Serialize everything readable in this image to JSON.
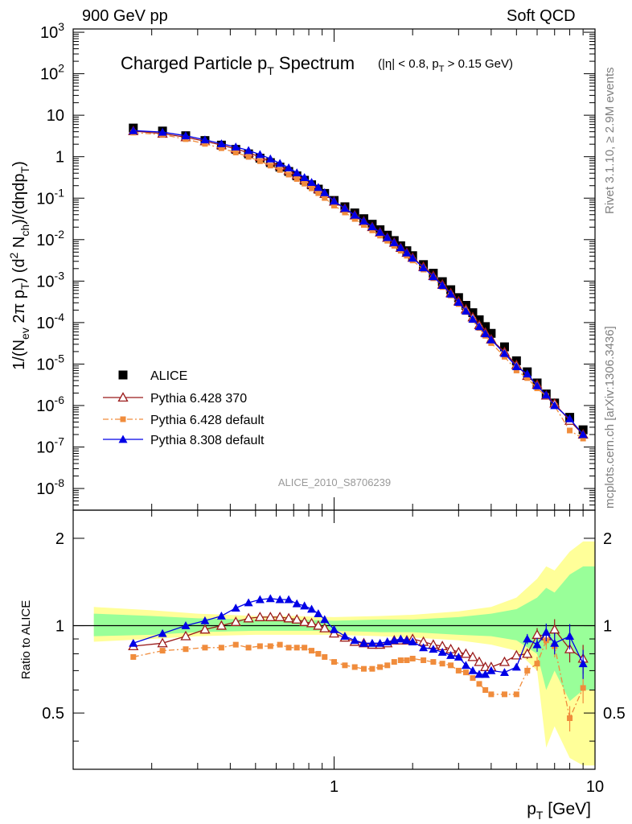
{
  "header": {
    "left": "900 GeV pp",
    "right": "Soft QCD"
  },
  "side_labels": {
    "top": "Rivet 3.1.10, ≥ 2.9M events",
    "bottom": "mcplots.cern.ch [arXiv:1306.3436]"
  },
  "colors": {
    "alice": "#000000",
    "pythia6_370": "#9b1b1b",
    "pythia6_default": "#f08c3c",
    "pythia8_default": "#0000e6",
    "band_inner": "#99ff99",
    "band_outer": "#ffff99"
  },
  "chart_data": [
    {
      "type": "scatter",
      "title_main": "Charged Particle p",
      "title_main_sub": "T",
      "title_main_tail": " Spectrum",
      "title_cut": "(|η| < 0.8, p",
      "title_cut_sub": "T",
      "title_cut_tail": " > 0.15 GeV)",
      "ylabel": "1/(N_ev 2π p_T) (d² N_ch)/(dηdp_T)",
      "yscale": "log",
      "xscale": "log",
      "xlim": [
        0.1,
        10
      ],
      "ylim": [
        3e-09,
        1200
      ],
      "y_tick_labels": [
        "10^-8",
        "10^-7",
        "10^-6",
        "10^-5",
        "10^-4",
        "10^-3",
        "10^-2",
        "10^-1",
        "1",
        "10",
        "10^2",
        "10^3"
      ],
      "watermark": "ALICE_2010_S8706239",
      "legend_position": "lower-left",
      "x": [
        0.17,
        0.22,
        0.27,
        0.32,
        0.37,
        0.42,
        0.47,
        0.52,
        0.57,
        0.62,
        0.67,
        0.72,
        0.77,
        0.82,
        0.87,
        0.92,
        1.0,
        1.1,
        1.2,
        1.3,
        1.4,
        1.5,
        1.6,
        1.7,
        1.8,
        1.9,
        2.0,
        2.2,
        2.4,
        2.6,
        2.8,
        3.0,
        3.2,
        3.4,
        3.6,
        3.8,
        4.0,
        4.5,
        5.0,
        5.5,
        6.0,
        6.5,
        7.0,
        8.0,
        9.0
      ],
      "series": [
        {
          "name": "ALICE",
          "marker": "square",
          "values": [
            4.9,
            4.15,
            3.2,
            2.45,
            1.9,
            1.5,
            1.17,
            0.92,
            0.72,
            0.56,
            0.44,
            0.345,
            0.27,
            0.21,
            0.165,
            0.13,
            0.088,
            0.062,
            0.044,
            0.032,
            0.0235,
            0.0173,
            0.0128,
            0.0095,
            0.0071,
            0.0054,
            0.0041,
            0.0025,
            0.00155,
            0.00097,
            0.00062,
            0.0004,
            0.00026,
            0.000173,
            0.000117,
            8e-05,
            5.5e-05,
            2.6e-05,
            1.2e-05,
            6.5e-06,
            3.5e-06,
            1.9e-06,
            1.15e-06,
            5.2e-07,
            2.6e-07
          ]
        },
        {
          "name": "Pythia 6.428 370",
          "marker": "triangle-open",
          "line": "solid",
          "values": [
            4.15,
            3.6,
            2.95,
            2.36,
            1.9,
            1.54,
            1.24,
            0.985,
            0.77,
            0.6,
            0.465,
            0.36,
            0.278,
            0.214,
            0.165,
            0.127,
            0.083,
            0.056,
            0.0385,
            0.0276,
            0.0202,
            0.0149,
            0.0111,
            0.00845,
            0.00635,
            0.00482,
            0.00368,
            0.00221,
            0.00134,
            0.000825,
            0.000512,
            0.000325,
            0.000208,
            0.000134,
            8.7e-05,
            5.75e-05,
            3.95e-05,
            1.95e-05,
            9.5e-06,
            5.2e-06,
            3.2e-06,
            1.75e-06,
            1.12e-06,
            4.3e-07,
            2e-07
          ]
        },
        {
          "name": "Pythia 6.428 default",
          "marker": "square-small",
          "line": "dashdot",
          "values": [
            3.8,
            3.4,
            2.65,
            2.04,
            1.6,
            1.26,
            0.99,
            0.78,
            0.61,
            0.478,
            0.37,
            0.29,
            0.224,
            0.172,
            0.132,
            0.101,
            0.066,
            0.0452,
            0.0315,
            0.0226,
            0.0167,
            0.0125,
            0.0094,
            0.0071,
            0.0054,
            0.0041,
            0.00315,
            0.0019,
            0.00117,
            0.00072,
            0.00045,
            0.00028,
            0.00018,
            0.000115,
            7.4e-05,
            4.8e-05,
            3.2e-05,
            1.5e-05,
            7e-06,
            4.6e-06,
            2.6e-06,
            1.7e-06,
            9.8e-07,
            2.5e-07,
            1.6e-07
          ]
        },
        {
          "name": "Pythia 8.308 default",
          "marker": "triangle",
          "line": "solid",
          "values": [
            4.25,
            3.9,
            3.2,
            2.55,
            2.05,
            1.72,
            1.41,
            1.13,
            0.89,
            0.69,
            0.54,
            0.41,
            0.315,
            0.24,
            0.182,
            0.136,
            0.085,
            0.057,
            0.039,
            0.028,
            0.0205,
            0.0151,
            0.0113,
            0.0085,
            0.0064,
            0.0048,
            0.0036,
            0.0021,
            0.00128,
            0.00079,
            0.00049,
            0.00031,
            0.00019,
            0.000121,
            8e-05,
            5.4e-05,
            3.85e-05,
            1.8e-05,
            8.7e-06,
            5.8e-06,
            3e-06,
            1.8e-06,
            1e-06,
            4.8e-07,
            2e-07
          ]
        }
      ]
    },
    {
      "type": "scatter",
      "ylabel": "Ratio to ALICE",
      "xlabel_main": "p",
      "xlabel_sub": "T",
      "xlabel_tail": " [GeV]",
      "xscale": "log",
      "yscale": "log",
      "xlim": [
        0.1,
        10
      ],
      "ylim": [
        0.32,
        2.5
      ],
      "x_tick_labels": [
        {
          "value": 1,
          "label": "1"
        },
        {
          "value": 10,
          "label": "10"
        }
      ],
      "y_tick_labels": [
        {
          "value": 0.5,
          "label": "0.5"
        },
        {
          "value": 1,
          "label": "1"
        },
        {
          "value": 2,
          "label": "2"
        }
      ],
      "reference_line": 1,
      "uncertainty_band": {
        "x": [
          0.12,
          0.2,
          0.3,
          0.5,
          0.7,
          1.0,
          1.5,
          2.0,
          3.0,
          4.0,
          5.0,
          6.0,
          6.5,
          7.0,
          8.0,
          9.0,
          10.0
        ],
        "inner_low": [
          0.92,
          0.93,
          0.95,
          0.96,
          0.96,
          0.96,
          0.95,
          0.95,
          0.93,
          0.92,
          0.89,
          0.8,
          0.6,
          0.7,
          0.55,
          0.6,
          0.6
        ],
        "inner_high": [
          1.1,
          1.08,
          1.06,
          1.05,
          1.05,
          1.04,
          1.05,
          1.05,
          1.07,
          1.1,
          1.14,
          1.25,
          1.35,
          1.3,
          1.5,
          1.6,
          1.6
        ],
        "outer_low": [
          0.88,
          0.9,
          0.92,
          0.93,
          0.93,
          0.93,
          0.92,
          0.91,
          0.89,
          0.86,
          0.82,
          0.7,
          0.38,
          0.45,
          0.35,
          0.33,
          0.33
        ],
        "outer_high": [
          1.16,
          1.13,
          1.1,
          1.08,
          1.08,
          1.07,
          1.08,
          1.09,
          1.12,
          1.16,
          1.25,
          1.45,
          1.6,
          1.55,
          1.8,
          1.95,
          1.95
        ]
      },
      "series": [
        {
          "name": "Pythia 6.428 370",
          "values": [
            0.85,
            0.87,
            0.92,
            0.97,
            1.0,
            1.03,
            1.06,
            1.07,
            1.07,
            1.07,
            1.06,
            1.05,
            1.03,
            1.02,
            1.0,
            0.98,
            0.94,
            0.91,
            0.88,
            0.87,
            0.86,
            0.86,
            0.87,
            0.89,
            0.89,
            0.89,
            0.9,
            0.88,
            0.86,
            0.85,
            0.83,
            0.81,
            0.8,
            0.78,
            0.75,
            0.72,
            0.72,
            0.75,
            0.79,
            0.8,
            0.93,
            0.92,
            0.97,
            0.83,
            0.77
          ]
        },
        {
          "name": "Pythia 6.428 default",
          "values": [
            0.78,
            0.82,
            0.83,
            0.84,
            0.84,
            0.86,
            0.84,
            0.85,
            0.85,
            0.86,
            0.84,
            0.84,
            0.84,
            0.82,
            0.8,
            0.78,
            0.75,
            0.73,
            0.72,
            0.71,
            0.71,
            0.72,
            0.73,
            0.75,
            0.76,
            0.76,
            0.77,
            0.76,
            0.75,
            0.74,
            0.73,
            0.7,
            0.69,
            0.66,
            0.63,
            0.6,
            0.58,
            0.58,
            0.58,
            0.7,
            0.74,
            0.89,
            0.85,
            0.48,
            0.61
          ]
        },
        {
          "name": "Pythia 8.308 default",
          "values": [
            0.87,
            0.94,
            1.0,
            1.04,
            1.08,
            1.15,
            1.2,
            1.23,
            1.24,
            1.23,
            1.23,
            1.19,
            1.17,
            1.14,
            1.1,
            1.05,
            0.97,
            0.92,
            0.89,
            0.87,
            0.87,
            0.87,
            0.88,
            0.89,
            0.9,
            0.89,
            0.88,
            0.84,
            0.83,
            0.81,
            0.79,
            0.78,
            0.73,
            0.7,
            0.68,
            0.68,
            0.7,
            0.69,
            0.72,
            0.9,
            0.86,
            0.95,
            0.87,
            0.92,
            0.74
          ]
        }
      ]
    }
  ]
}
